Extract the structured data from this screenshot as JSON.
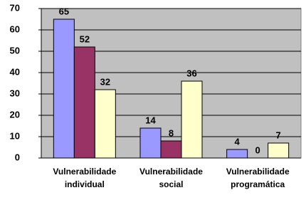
{
  "chart_data": {
    "type": "bar",
    "categories": [
      "Vulnerabilidade individual",
      "Vulnerabilidade social",
      "Vulnerabilidade programática"
    ],
    "series": [
      {
        "color": "#9999ff",
        "values": [
          65,
          14,
          4
        ]
      },
      {
        "color": "#993366",
        "values": [
          52,
          8,
          0
        ]
      },
      {
        "color": "#ffffcc",
        "values": [
          32,
          36,
          7
        ]
      }
    ],
    "ylim": [
      0,
      70
    ],
    "yticks": [
      0,
      10,
      20,
      30,
      40,
      50,
      60,
      70
    ],
    "grid": true,
    "plot_background": "#c0c0c0"
  }
}
